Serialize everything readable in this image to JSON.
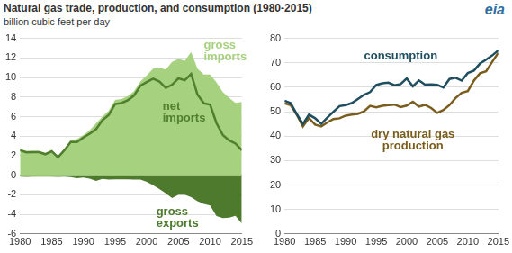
{
  "logo": "eia",
  "chart_data": [
    {
      "type": "line",
      "title": "Natural gas trade, production, and consumption (1980-2015)",
      "subtitle": "billion cubic feet per day",
      "x": [
        1980,
        1981,
        1982,
        1983,
        1984,
        1985,
        1986,
        1987,
        1988,
        1989,
        1990,
        1991,
        1992,
        1993,
        1994,
        1995,
        1996,
        1997,
        1998,
        1999,
        2000,
        2001,
        2002,
        2003,
        2004,
        2005,
        2006,
        2007,
        2008,
        2009,
        2010,
        2011,
        2012,
        2013,
        2014,
        2015
      ],
      "xlim": [
        1980,
        2015
      ],
      "xticks": [
        1980,
        1985,
        1990,
        1995,
        2000,
        2005,
        2010,
        2015
      ],
      "ylim": [
        -6,
        14
      ],
      "yticks": [
        -6,
        -4,
        -2,
        0,
        2,
        4,
        6,
        8,
        10,
        12,
        14
      ],
      "grid": "y",
      "series": [
        {
          "name": "gross imports",
          "type": "area",
          "color": "#a6d17e",
          "values": [
            2.7,
            2.5,
            2.5,
            2.5,
            2.3,
            2.6,
            2.0,
            2.7,
            3.6,
            3.7,
            4.1,
            4.6,
            5.3,
            6.0,
            6.6,
            7.7,
            7.8,
            8.1,
            8.6,
            9.6,
            10.2,
            10.9,
            11.0,
            10.8,
            11.6,
            11.9,
            11.7,
            12.6,
            10.9,
            10.3,
            10.3,
            9.5,
            8.5,
            7.9,
            7.4,
            7.5
          ]
        },
        {
          "name": "net imports",
          "type": "line",
          "color": "#4f7f2f",
          "values": [
            2.56,
            2.34,
            2.36,
            2.35,
            2.15,
            2.45,
            1.83,
            2.55,
            3.4,
            3.4,
            3.86,
            4.25,
            4.71,
            5.62,
            6.16,
            7.28,
            7.38,
            7.67,
            8.16,
            9.15,
            9.53,
            9.88,
            9.59,
            8.94,
            9.26,
            9.91,
            9.72,
            10.36,
            8.25,
            7.37,
            7.21,
            5.33,
            4.12,
            3.57,
            3.24,
            2.56
          ]
        },
        {
          "name": "gross exports",
          "type": "area",
          "color": "#4e7a2d",
          "values": [
            -0.14,
            -0.16,
            -0.14,
            -0.15,
            -0.15,
            -0.15,
            -0.17,
            -0.15,
            -0.2,
            -0.3,
            -0.24,
            -0.35,
            -0.59,
            -0.38,
            -0.44,
            -0.42,
            -0.42,
            -0.43,
            -0.44,
            -0.45,
            -0.67,
            -1.02,
            -1.41,
            -1.86,
            -2.34,
            -1.99,
            -1.98,
            -2.24,
            -2.65,
            -2.93,
            -3.09,
            -4.17,
            -4.38,
            -4.33,
            -4.16,
            -4.94
          ]
        }
      ]
    },
    {
      "type": "line",
      "x": [
        1980,
        1981,
        1982,
        1983,
        1984,
        1985,
        1986,
        1987,
        1988,
        1989,
        1990,
        1991,
        1992,
        1993,
        1994,
        1995,
        1996,
        1997,
        1998,
        1999,
        2000,
        2001,
        2002,
        2003,
        2004,
        2005,
        2006,
        2007,
        2008,
        2009,
        2010,
        2011,
        2012,
        2013,
        2014,
        2015
      ],
      "xlim": [
        1980,
        2015
      ],
      "xticks": [
        1980,
        1985,
        1990,
        1995,
        2000,
        2005,
        2010,
        2015
      ],
      "ylim": [
        0,
        80
      ],
      "yticks": [
        0,
        10,
        20,
        30,
        40,
        50,
        60,
        70,
        80
      ],
      "grid": "y",
      "series": [
        {
          "name": "consumption",
          "type": "line",
          "color": "#1f4e60",
          "values": [
            54.5,
            53.5,
            49.0,
            45.0,
            48.8,
            47.3,
            45.0,
            47.6,
            50.0,
            52.3,
            52.7,
            53.5,
            55.2,
            56.9,
            58.0,
            60.9,
            61.6,
            61.9,
            60.8,
            61.3,
            63.6,
            60.4,
            62.8,
            61.1,
            61.2,
            61.0,
            59.9,
            63.4,
            63.9,
            62.7,
            65.8,
            66.8,
            69.7,
            71.3,
            73.0,
            75.1
          ]
        },
        {
          "name": "dry natural gas production",
          "type": "line",
          "color": "#7a5c1c",
          "values": [
            53.4,
            52.7,
            48.8,
            44.0,
            47.4,
            44.7,
            44.0,
            45.6,
            47.0,
            47.3,
            48.4,
            48.8,
            49.1,
            50.1,
            52.4,
            51.8,
            52.4,
            52.7,
            52.9,
            51.9,
            52.5,
            54.1,
            52.1,
            52.8,
            51.5,
            49.5,
            50.7,
            52.7,
            55.6,
            57.7,
            58.4,
            62.7,
            65.7,
            66.5,
            70.4,
            74.1
          ]
        }
      ]
    }
  ]
}
